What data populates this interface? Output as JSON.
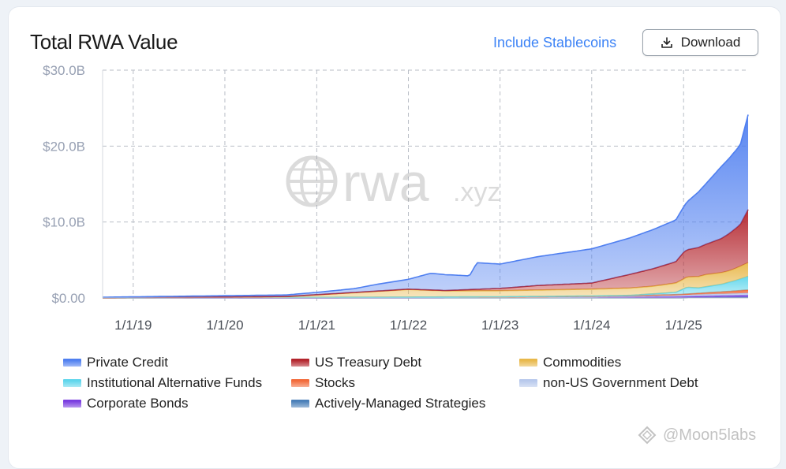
{
  "header": {
    "title": "Total RWA Value",
    "stablecoins_link": "Include Stablecoins",
    "download_label": "Download"
  },
  "watermark": {
    "brand": "rwa",
    "suffix": ".xyz"
  },
  "credit": {
    "text": "@Moon5labs"
  },
  "colors": {
    "private_credit": "#4f7ff0",
    "us_treasury": "#b3242c",
    "commodities": "#e8b84a",
    "institutional_alt": "#5fd6ec",
    "stocks": "#f26a3a",
    "non_us_gov": "#b8c9ec",
    "corporate_bonds": "#7a3de0",
    "actively_managed": "#4a7fb8"
  },
  "chart_data": {
    "type": "area",
    "x_ticks": [
      "1/1/19",
      "1/1/20",
      "1/1/21",
      "1/1/22",
      "1/1/23",
      "1/1/24",
      "1/1/25"
    ],
    "y_ticks": [
      "$0.00",
      "$10.0B",
      "$20.0B",
      "$30.0B"
    ],
    "ylim": [
      0,
      30
    ],
    "xlim": [
      "2018-09-01",
      "2025-09-15"
    ],
    "grid": true,
    "legend_position": "bottom",
    "stacked": true,
    "series": [
      {
        "name": "Actively-Managed Strategies",
        "color_key": "actively_managed",
        "points": [
          [
            "2018-09-01",
            0
          ],
          [
            "2024-12-01",
            0
          ],
          [
            "2025-03-01",
            0.05
          ],
          [
            "2025-09-15",
            0.1
          ]
        ]
      },
      {
        "name": "Corporate Bonds",
        "color_key": "corporate_bonds",
        "points": [
          [
            "2018-09-01",
            0
          ],
          [
            "2022-01-01",
            0.02
          ],
          [
            "2024-01-01",
            0.05
          ],
          [
            "2025-01-01",
            0.15
          ],
          [
            "2025-09-15",
            0.25
          ]
        ]
      },
      {
        "name": "non-US Government Debt",
        "color_key": "non_us_gov",
        "points": [
          [
            "2018-09-01",
            0
          ],
          [
            "2023-01-01",
            0.05
          ],
          [
            "2024-06-01",
            0.15
          ],
          [
            "2025-09-15",
            0.3
          ]
        ]
      },
      {
        "name": "Stocks",
        "color_key": "stocks",
        "points": [
          [
            "2018-09-01",
            0
          ],
          [
            "2024-06-01",
            0.05
          ],
          [
            "2025-01-01",
            0.1
          ],
          [
            "2025-06-01",
            0.25
          ],
          [
            "2025-09-15",
            0.4
          ]
        ]
      },
      {
        "name": "Institutional Alternative Funds",
        "color_key": "institutional_alt",
        "points": [
          [
            "2018-09-01",
            0
          ],
          [
            "2024-06-01",
            0.05
          ],
          [
            "2024-12-01",
            0.3
          ],
          [
            "2025-01-15",
            0.9
          ],
          [
            "2025-03-01",
            0.7
          ],
          [
            "2025-06-01",
            1.0
          ],
          [
            "2025-08-01",
            1.4
          ],
          [
            "2025-09-15",
            1.8
          ]
        ]
      },
      {
        "name": "Commodities",
        "color_key": "commodities",
        "points": [
          [
            "2018-09-01",
            0
          ],
          [
            "2020-09-01",
            0.1
          ],
          [
            "2021-06-01",
            0.6
          ],
          [
            "2022-01-01",
            1.0
          ],
          [
            "2022-06-01",
            0.8
          ],
          [
            "2023-01-01",
            0.8
          ],
          [
            "2024-01-01",
            0.9
          ],
          [
            "2024-09-01",
            1.0
          ],
          [
            "2025-01-01",
            1.3
          ],
          [
            "2025-04-01",
            1.6
          ],
          [
            "2025-07-01",
            1.5
          ],
          [
            "2025-09-15",
            1.8
          ]
        ]
      },
      {
        "name": "US Treasury Debt",
        "color_key": "us_treasury",
        "points": [
          [
            "2018-09-01",
            0
          ],
          [
            "2022-06-01",
            0.05
          ],
          [
            "2023-01-01",
            0.3
          ],
          [
            "2023-06-01",
            0.6
          ],
          [
            "2024-01-01",
            0.8
          ],
          [
            "2024-06-01",
            1.8
          ],
          [
            "2024-12-01",
            2.8
          ],
          [
            "2025-01-01",
            3.5
          ],
          [
            "2025-04-01",
            4.0
          ],
          [
            "2025-06-01",
            4.5
          ],
          [
            "2025-08-15",
            5.5
          ],
          [
            "2025-09-15",
            7.0
          ]
        ]
      },
      {
        "name": "Private Credit",
        "color_key": "private_credit",
        "points": [
          [
            "2018-09-01",
            0.1
          ],
          [
            "2020-09-01",
            0.2
          ],
          [
            "2021-01-01",
            0.3
          ],
          [
            "2021-06-01",
            0.5
          ],
          [
            "2021-09-01",
            0.9
          ],
          [
            "2022-01-01",
            1.3
          ],
          [
            "2022-04-01",
            2.2
          ],
          [
            "2022-07-01",
            2.0
          ],
          [
            "2022-09-01",
            1.8
          ],
          [
            "2022-10-01",
            3.5
          ],
          [
            "2023-01-01",
            3.2
          ],
          [
            "2023-06-01",
            3.8
          ],
          [
            "2024-01-01",
            4.5
          ],
          [
            "2024-06-01",
            4.8
          ],
          [
            "2024-12-01",
            5.5
          ],
          [
            "2025-01-01",
            6.0
          ],
          [
            "2025-04-01",
            8.0
          ],
          [
            "2025-06-01",
            9.5
          ],
          [
            "2025-08-15",
            10.5
          ],
          [
            "2025-09-15",
            12.5
          ]
        ]
      }
    ]
  },
  "legend": [
    {
      "label": "Private Credit",
      "color_key": "private_credit"
    },
    {
      "label": "US Treasury Debt",
      "color_key": "us_treasury"
    },
    {
      "label": "Commodities",
      "color_key": "commodities"
    },
    {
      "label": "Institutional Alternative Funds",
      "color_key": "institutional_alt"
    },
    {
      "label": "Stocks",
      "color_key": "stocks"
    },
    {
      "label": "non-US Government Debt",
      "color_key": "non_us_gov"
    },
    {
      "label": "Corporate Bonds",
      "color_key": "corporate_bonds"
    },
    {
      "label": "Actively-Managed Strategies",
      "color_key": "actively_managed"
    }
  ]
}
